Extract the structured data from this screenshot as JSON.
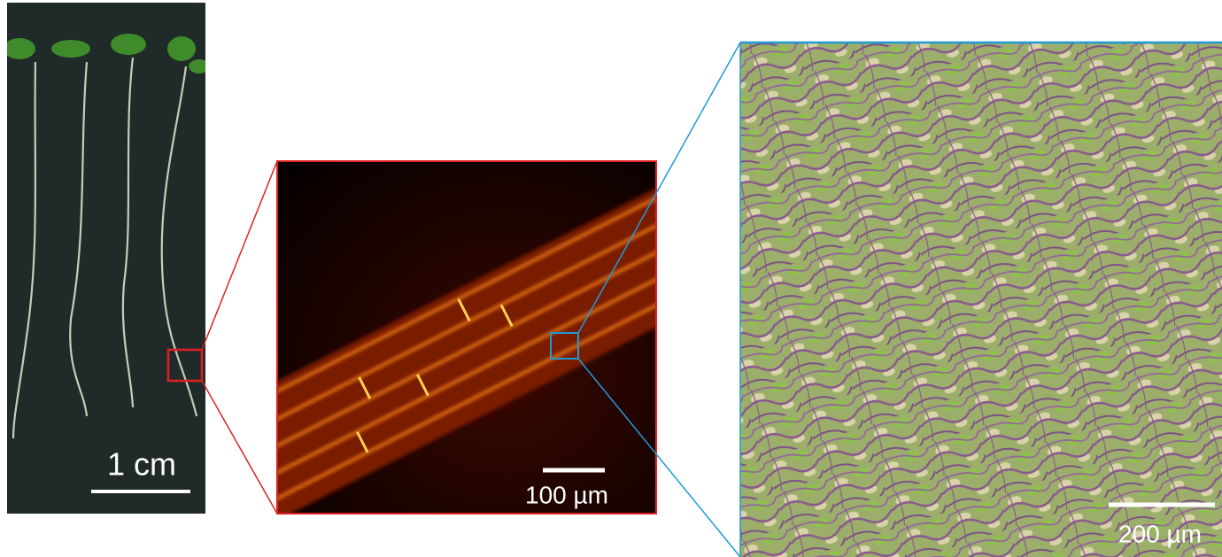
{
  "panels": [
    {
      "scale_bar": "1 cm"
    },
    {
      "scale_bar": "100 µm"
    },
    {
      "scale_bar": "200 µm"
    }
  ]
}
